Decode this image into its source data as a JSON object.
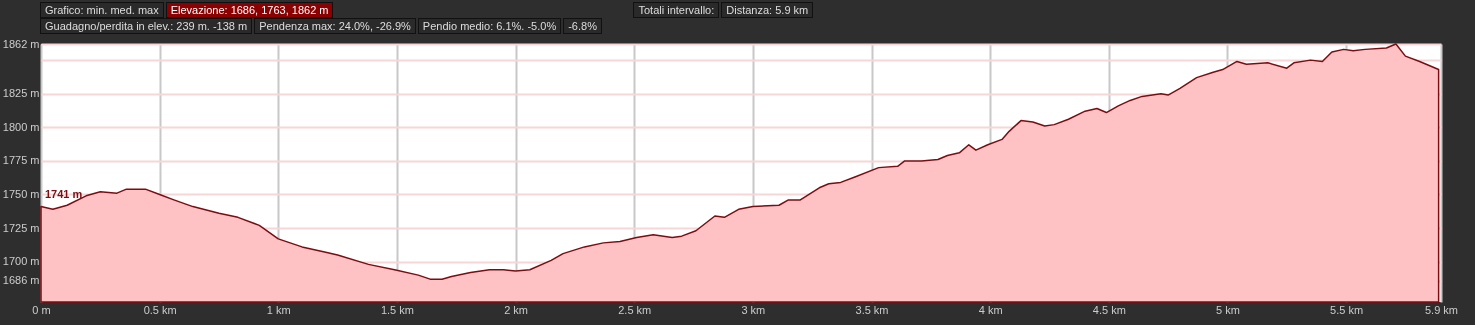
{
  "chart_data": {
    "type": "area",
    "annotations": [
      "Grafico: min. med. max",
      "Elevazione: 1686, 1763, 1862 m",
      "Totali intervallo:",
      "Distanza: 5.9 km",
      "Guadagno/perdita in elev.: 239 m. -138 m",
      "Pendenza max: 24.0%, -26.9%",
      "Pendio medio: 6.1%. -5.0%",
      "-6.8%",
      {
        "text": "1741 m",
        "x": 0,
        "y": 1741
      }
    ],
    "x": [
      0,
      0.05,
      0.11,
      0.19,
      0.25,
      0.32,
      0.36,
      0.44,
      0.5,
      0.56,
      0.64,
      0.75,
      0.83,
      0.92,
      1.0,
      1.1,
      1.2,
      1.25,
      1.38,
      1.49,
      1.59,
      1.64,
      1.69,
      1.73,
      1.81,
      1.89,
      1.95,
      2.0,
      2.06,
      2.15,
      2.2,
      2.29,
      2.37,
      2.44,
      2.51,
      2.58,
      2.66,
      2.7,
      2.76,
      2.84,
      2.88,
      2.94,
      3.0,
      3.11,
      3.15,
      3.2,
      3.28,
      3.32,
      3.37,
      3.43,
      3.53,
      3.61,
      3.64,
      3.71,
      3.78,
      3.82,
      3.87,
      3.91,
      3.94,
      3.99,
      4.05,
      4.08,
      4.13,
      4.18,
      4.23,
      4.27,
      4.33,
      4.4,
      4.45,
      4.49,
      4.54,
      4.59,
      4.64,
      4.72,
      4.75,
      4.8,
      4.87,
      4.94,
      4.98,
      5.04,
      5.08,
      5.17,
      5.25,
      5.28,
      5.35,
      5.4,
      5.44,
      5.49,
      5.53,
      5.58,
      5.67,
      5.71,
      5.75,
      5.81,
      5.89
    ],
    "values": [
      1741,
      1739,
      1742,
      1749,
      1752,
      1751,
      1754,
      1754,
      1750,
      1746,
      1741,
      1736,
      1733,
      1727,
      1717,
      1711,
      1707,
      1705,
      1698,
      1694,
      1690,
      1687,
      1687,
      1689,
      1692,
      1694,
      1694,
      1693,
      1694,
      1701,
      1706,
      1711,
      1714,
      1715,
      1718,
      1720,
      1718,
      1719,
      1723,
      1734,
      1733,
      1739,
      1741,
      1742,
      1746,
      1746,
      1755,
      1758,
      1759,
      1763,
      1770,
      1771,
      1775,
      1775,
      1776,
      1779,
      1781,
      1787,
      1783,
      1787,
      1791,
      1797,
      1805,
      1804,
      1801,
      1802,
      1806,
      1812,
      1814,
      1811,
      1816,
      1820,
      1823,
      1825,
      1824,
      1829,
      1837,
      1841,
      1843,
      1849,
      1847,
      1848,
      1844,
      1848,
      1850,
      1849,
      1856,
      1858,
      1857,
      1858,
      1859,
      1862,
      1853,
      1849,
      1843
    ],
    "color": "#ffc2c4",
    "xlim": [
      0,
      5.9
    ],
    "xticks": [
      {
        "value": 0,
        "label": "0 m"
      },
      {
        "value": 0.5,
        "label": "0.5 km"
      },
      {
        "value": 1,
        "label": "1 km"
      },
      {
        "value": 1.5,
        "label": "1.5 km"
      },
      {
        "value": 2,
        "label": "2 km"
      },
      {
        "value": 2.5,
        "label": "2.5 km"
      },
      {
        "value": 3,
        "label": "3 km"
      },
      {
        "value": 3.5,
        "label": "3.5 km"
      },
      {
        "value": 4,
        "label": "4 km"
      },
      {
        "value": 4.5,
        "label": "4.5 km"
      },
      {
        "value": 5,
        "label": "5 km"
      },
      {
        "value": 5.5,
        "label": "5.5 km"
      },
      {
        "value": 5.9,
        "label": "5.9 km"
      }
    ],
    "ylim": [
      1670,
      1862
    ],
    "yticks": [
      {
        "value": 1686,
        "label": "1686 m"
      },
      {
        "value": 1700,
        "label": "1700 m"
      },
      {
        "value": 1725,
        "label": "1725 m"
      },
      {
        "value": 1750,
        "label": "1750 m"
      },
      {
        "value": 1775,
        "label": "1775 m"
      },
      {
        "value": 1800,
        "label": "1800 m"
      },
      {
        "value": 1825,
        "label": "1825 m"
      },
      {
        "value": 1850,
        "label": null
      },
      {
        "value": 1862,
        "label": "1862 m"
      }
    ],
    "grid": true
  }
}
